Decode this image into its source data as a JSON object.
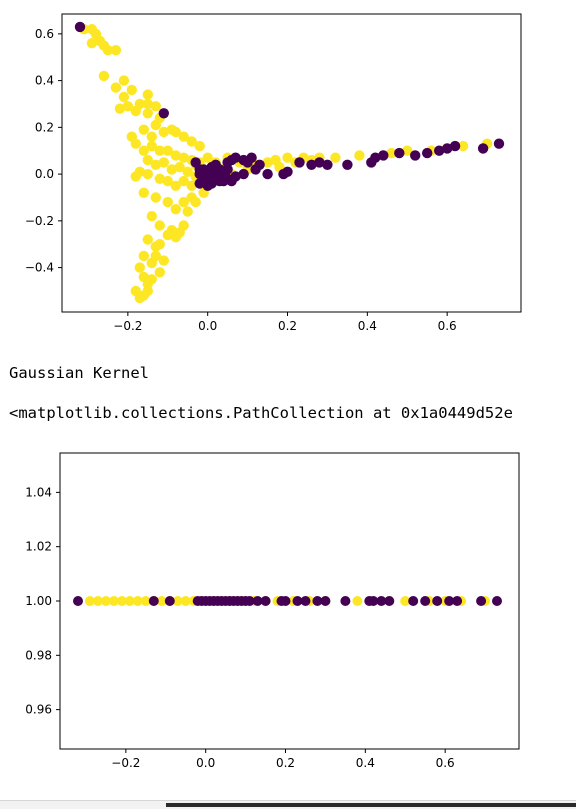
{
  "outputs": {
    "text1": "Gaussian Kernel",
    "text2": "<matplotlib.collections.PathCollection at 0x1a0449d52e"
  },
  "colors": {
    "purple": "#440154",
    "yellow": "#fde725"
  },
  "chart_data": [
    {
      "type": "scatter",
      "xlim": [
        -0.365,
        0.785
      ],
      "ylim": [
        -0.59,
        0.685
      ],
      "xticks": [
        -0.2,
        0.0,
        0.2,
        0.4,
        0.6
      ],
      "xtick_labels": [
        "−0.2",
        "0.0",
        "0.2",
        "0.4",
        "0.6"
      ],
      "yticks": [
        -0.4,
        -0.2,
        0.0,
        0.2,
        0.4,
        0.6
      ],
      "ytick_labels": [
        "−0.4",
        "−0.2",
        "0.0",
        "0.2",
        "0.4",
        "0.6"
      ],
      "grid": false,
      "series": [
        {
          "color": "#fde725",
          "points": [
            [
              -0.31,
              0.62
            ],
            [
              -0.29,
              0.62
            ],
            [
              -0.28,
              0.6
            ],
            [
              -0.29,
              0.56
            ],
            [
              -0.27,
              0.57
            ],
            [
              -0.25,
              0.53
            ],
            [
              -0.23,
              0.53
            ],
            [
              -0.26,
              0.55
            ],
            [
              -0.26,
              0.42
            ],
            [
              -0.23,
              0.37
            ],
            [
              -0.21,
              0.4
            ],
            [
              -0.19,
              0.36
            ],
            [
              -0.21,
              0.33
            ],
            [
              -0.2,
              0.29
            ],
            [
              -0.17,
              0.3
            ],
            [
              -0.15,
              0.3
            ],
            [
              -0.15,
              0.34
            ],
            [
              -0.13,
              0.29
            ],
            [
              -0.22,
              0.28
            ],
            [
              -0.18,
              0.27
            ],
            [
              -0.15,
              0.26
            ],
            [
              -0.12,
              0.24
            ],
            [
              -0.13,
              0.21
            ],
            [
              -0.16,
              0.19
            ],
            [
              -0.19,
              0.16
            ],
            [
              -0.18,
              0.13
            ],
            [
              -0.14,
              0.16
            ],
            [
              -0.11,
              0.18
            ],
            [
              -0.09,
              0.19
            ],
            [
              -0.08,
              0.18
            ],
            [
              -0.06,
              0.16
            ],
            [
              -0.04,
              0.14
            ],
            [
              -0.02,
              0.12
            ],
            [
              -0.16,
              0.1
            ],
            [
              -0.14,
              0.12
            ],
            [
              -0.12,
              0.1
            ],
            [
              -0.1,
              0.1
            ],
            [
              -0.08,
              0.08
            ],
            [
              -0.06,
              0.07
            ],
            [
              -0.04,
              0.06
            ],
            [
              -0.02,
              0.05
            ],
            [
              0.0,
              0.07
            ],
            [
              -0.03,
              0.04
            ],
            [
              -0.15,
              0.06
            ],
            [
              -0.13,
              0.04
            ],
            [
              -0.11,
              0.05
            ],
            [
              -0.09,
              0.02
            ],
            [
              -0.07,
              0.03
            ],
            [
              -0.05,
              0.01
            ],
            [
              -0.03,
              -0.01
            ],
            [
              -0.01,
              0.0
            ],
            [
              -0.17,
              0.01
            ],
            [
              -0.15,
              0.0
            ],
            [
              -0.12,
              -0.02
            ],
            [
              -0.1,
              -0.03
            ],
            [
              -0.08,
              -0.05
            ],
            [
              -0.06,
              -0.03
            ],
            [
              -0.04,
              -0.05
            ],
            [
              -0.02,
              -0.02
            ],
            [
              -0.16,
              -0.08
            ],
            [
              -0.13,
              -0.1
            ],
            [
              -0.1,
              -0.12
            ],
            [
              -0.08,
              -0.15
            ],
            [
              -0.06,
              -0.12
            ],
            [
              -0.04,
              -0.1
            ],
            [
              -0.14,
              -0.18
            ],
            [
              -0.12,
              -0.22
            ],
            [
              -0.09,
              -0.24
            ],
            [
              -0.08,
              -0.27
            ],
            [
              -0.15,
              -0.28
            ],
            [
              -0.13,
              -0.31
            ],
            [
              -0.13,
              -0.35
            ],
            [
              -0.16,
              -0.35
            ],
            [
              -0.14,
              -0.38
            ],
            [
              -0.17,
              -0.4
            ],
            [
              -0.16,
              -0.44
            ],
            [
              -0.15,
              -0.47
            ],
            [
              -0.18,
              -0.5
            ],
            [
              -0.16,
              -0.52
            ],
            [
              -0.17,
              -0.53
            ],
            [
              -0.15,
              -0.5
            ],
            [
              -0.14,
              -0.45
            ],
            [
              -0.12,
              -0.42
            ],
            [
              -0.11,
              -0.37
            ],
            [
              -0.12,
              -0.3
            ],
            [
              -0.1,
              -0.26
            ],
            [
              -0.07,
              -0.25
            ],
            [
              -0.06,
              -0.22
            ],
            [
              -0.05,
              -0.16
            ],
            [
              -0.03,
              -0.12
            ],
            [
              -0.01,
              -0.08
            ],
            [
              -0.18,
              -0.01
            ],
            [
              0.02,
              0.05
            ],
            [
              0.05,
              0.07
            ],
            [
              0.08,
              0.05
            ],
            [
              0.12,
              0.04
            ],
            [
              0.15,
              0.05
            ],
            [
              0.17,
              0.06
            ],
            [
              0.2,
              0.07
            ],
            [
              0.24,
              0.07
            ],
            [
              0.28,
              0.07
            ],
            [
              0.32,
              0.07
            ],
            [
              0.38,
              0.08
            ],
            [
              0.46,
              0.09
            ],
            [
              0.5,
              0.1
            ],
            [
              0.56,
              0.1
            ],
            [
              0.6,
              0.11
            ],
            [
              0.64,
              0.12
            ],
            [
              0.7,
              0.13
            ],
            [
              0.18,
              0.03
            ],
            [
              0.1,
              0.02
            ],
            [
              0.06,
              0.0
            ],
            [
              0.04,
              0.02
            ],
            [
              0.22,
              0.05
            ],
            [
              0.26,
              0.06
            ]
          ]
        },
        {
          "color": "#440154",
          "points": [
            [
              -0.32,
              0.63
            ],
            [
              -0.11,
              0.26
            ],
            [
              -0.03,
              0.05
            ],
            [
              -0.02,
              0.0
            ],
            [
              -0.01,
              -0.02
            ],
            [
              0.0,
              -0.03
            ],
            [
              0.01,
              -0.04
            ],
            [
              0.02,
              -0.02
            ],
            [
              0.0,
              0.0
            ],
            [
              0.02,
              0.01
            ],
            [
              0.04,
              0.0
            ],
            [
              0.03,
              -0.03
            ],
            [
              0.05,
              -0.02
            ],
            [
              0.06,
              -0.03
            ],
            [
              0.07,
              -0.01
            ],
            [
              -0.02,
              -0.04
            ],
            [
              0.0,
              -0.05
            ],
            [
              -0.01,
              0.02
            ],
            [
              0.01,
              0.03
            ],
            [
              0.03,
              0.02
            ],
            [
              0.02,
              0.04
            ],
            [
              0.05,
              0.05
            ],
            [
              0.07,
              0.07
            ],
            [
              0.09,
              0.06
            ],
            [
              0.11,
              0.07
            ],
            [
              0.13,
              0.04
            ],
            [
              0.15,
              0.0
            ],
            [
              0.19,
              0.0
            ],
            [
              0.2,
              0.01
            ],
            [
              0.23,
              0.05
            ],
            [
              0.26,
              0.04
            ],
            [
              0.28,
              0.05
            ],
            [
              0.3,
              0.04
            ],
            [
              0.35,
              0.04
            ],
            [
              0.41,
              0.05
            ],
            [
              0.42,
              0.07
            ],
            [
              0.44,
              0.08
            ],
            [
              0.48,
              0.09
            ],
            [
              0.52,
              0.08
            ],
            [
              0.55,
              0.09
            ],
            [
              0.58,
              0.1
            ],
            [
              0.6,
              0.11
            ],
            [
              0.62,
              0.12
            ],
            [
              0.69,
              0.11
            ],
            [
              0.73,
              0.13
            ],
            [
              0.09,
              0.0
            ],
            [
              0.05,
              0.02
            ],
            [
              0.06,
              0.06
            ],
            [
              0.1,
              0.05
            ],
            [
              0.12,
              0.02
            ],
            [
              0.04,
              -0.03
            ],
            [
              -0.02,
              0.02
            ]
          ]
        }
      ]
    },
    {
      "type": "scatter",
      "xlim": [
        -0.365,
        0.785
      ],
      "ylim": [
        0.9455,
        1.0545
      ],
      "xticks": [
        -0.2,
        0.0,
        0.2,
        0.4,
        0.6
      ],
      "xtick_labels": [
        "−0.2",
        "0.0",
        "0.2",
        "0.4",
        "0.6"
      ],
      "yticks": [
        0.96,
        0.98,
        1.0,
        1.02,
        1.04
      ],
      "ytick_labels": [
        "0.96",
        "0.98",
        "1.00",
        "1.02",
        "1.04"
      ],
      "grid": false,
      "series": [
        {
          "color": "#fde725",
          "points": [
            [
              -0.29,
              1.0
            ],
            [
              -0.27,
              1.0
            ],
            [
              -0.25,
              1.0
            ],
            [
              -0.23,
              1.0
            ],
            [
              -0.21,
              1.0
            ],
            [
              -0.19,
              1.0
            ],
            [
              -0.17,
              1.0
            ],
            [
              -0.15,
              1.0
            ],
            [
              -0.13,
              1.0
            ],
            [
              -0.11,
              1.0
            ],
            [
              -0.09,
              1.0
            ],
            [
              -0.07,
              1.0
            ],
            [
              -0.05,
              1.0
            ],
            [
              -0.03,
              1.0
            ],
            [
              -0.01,
              1.0
            ],
            [
              0.02,
              1.0
            ],
            [
              0.06,
              1.0
            ],
            [
              0.09,
              1.0
            ],
            [
              0.12,
              1.0
            ],
            [
              0.15,
              1.0
            ],
            [
              0.18,
              1.0
            ],
            [
              0.22,
              1.0
            ],
            [
              0.26,
              1.0
            ],
            [
              0.3,
              1.0
            ],
            [
              0.38,
              1.0
            ],
            [
              0.46,
              1.0
            ],
            [
              0.5,
              1.0
            ],
            [
              0.56,
              1.0
            ],
            [
              0.6,
              1.0
            ],
            [
              0.64,
              1.0
            ],
            [
              0.7,
              1.0
            ]
          ]
        },
        {
          "color": "#440154",
          "points": [
            [
              -0.32,
              1.0
            ],
            [
              -0.13,
              1.0
            ],
            [
              -0.09,
              1.0
            ],
            [
              -0.02,
              1.0
            ],
            [
              -0.01,
              1.0
            ],
            [
              0.0,
              1.0
            ],
            [
              0.01,
              1.0
            ],
            [
              0.02,
              1.0
            ],
            [
              0.03,
              1.0
            ],
            [
              0.04,
              1.0
            ],
            [
              0.05,
              1.0
            ],
            [
              0.06,
              1.0
            ],
            [
              0.07,
              1.0
            ],
            [
              0.08,
              1.0
            ],
            [
              0.09,
              1.0
            ],
            [
              0.1,
              1.0
            ],
            [
              0.11,
              1.0
            ],
            [
              0.13,
              1.0
            ],
            [
              0.15,
              1.0
            ],
            [
              0.19,
              1.0
            ],
            [
              0.2,
              1.0
            ],
            [
              0.23,
              1.0
            ],
            [
              0.25,
              1.0
            ],
            [
              0.28,
              1.0
            ],
            [
              0.3,
              1.0
            ],
            [
              0.35,
              1.0
            ],
            [
              0.41,
              1.0
            ],
            [
              0.42,
              1.0
            ],
            [
              0.44,
              1.0
            ],
            [
              0.46,
              1.0
            ],
            [
              0.52,
              1.0
            ],
            [
              0.55,
              1.0
            ],
            [
              0.58,
              1.0
            ],
            [
              0.61,
              1.0
            ],
            [
              0.63,
              1.0
            ],
            [
              0.69,
              1.0
            ],
            [
              0.73,
              1.0
            ]
          ]
        }
      ]
    }
  ]
}
